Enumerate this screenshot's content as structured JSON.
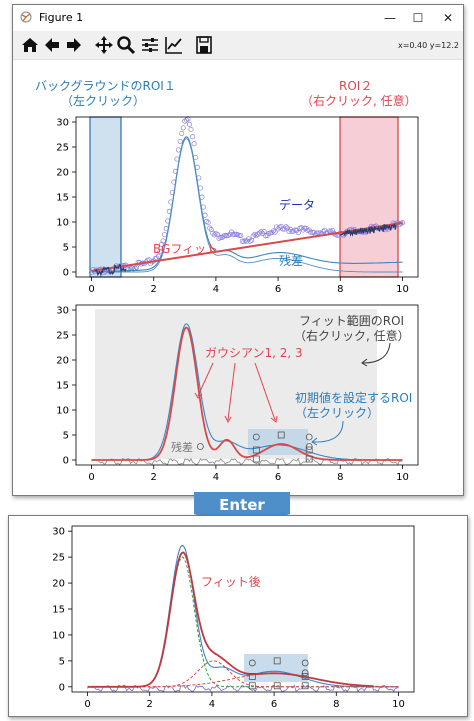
{
  "window": {
    "title": "Figure 1",
    "minimize_glyph": "—",
    "maximize_glyph": "☐",
    "close_glyph": "✕"
  },
  "toolbar": {
    "icons": [
      "home-icon",
      "back-arrow-icon",
      "forward-arrow-icon",
      "pan-icon",
      "zoom-icon",
      "configure-subplots-icon",
      "edit-axes-icon",
      "save-icon"
    ],
    "coords": "x=0.40 y=12.2"
  },
  "colors": {
    "blue_label": "#2b7bb9",
    "red_label": "#e0454f",
    "data_label": "#1a2fb0",
    "line_blue": "#3a87c4",
    "line_red": "#d84a4a",
    "roi1_fill": "#cfe0ee",
    "roi2_fill": "#f5cfd5",
    "arrow_banner": "#4e8fc9"
  },
  "plot1": {
    "annotations": {
      "roi1_title": "バックグラウンドのROI１",
      "roi1_sub": "（左クリック）",
      "roi2_title": "ROI２",
      "roi2_sub": "（右クリック, 任意）",
      "data": "データ",
      "bg_fit": "BGフィット",
      "residual": "残差"
    },
    "yticks": [
      "0",
      "5",
      "10",
      "15",
      "20",
      "25",
      "30"
    ],
    "xticks": [
      "0",
      "2",
      "4",
      "6",
      "8",
      "10"
    ]
  },
  "plot2": {
    "annotations": {
      "fit_range_title": "フィット範囲のROI",
      "fit_range_sub": "（右クリック, 任意）",
      "gaussian": "ガウシアン1, 2, 3",
      "init_title": "初期値を設定するROI",
      "init_sub": "（左クリック）",
      "residual": "残差"
    },
    "yticks": [
      "0",
      "5",
      "10",
      "15",
      "20",
      "25",
      "30"
    ],
    "xticks": [
      "0",
      "2",
      "4",
      "6",
      "8",
      "10"
    ]
  },
  "enter_banner": {
    "label": "Enter"
  },
  "plot3": {
    "annotations": {
      "after_fit": "フィット後"
    },
    "yticks": [
      "0",
      "5",
      "10",
      "15",
      "20",
      "25",
      "30"
    ],
    "xticks": [
      "0",
      "2",
      "4",
      "6",
      "8",
      "10"
    ]
  },
  "chart_data": [
    {
      "type": "scatter",
      "title": "",
      "xlabel": "",
      "ylabel": "",
      "xlim": [
        -0.5,
        10.5
      ],
      "ylim": [
        -1,
        31
      ],
      "series": [
        {
          "name": "データ",
          "style": "open-circle-markers"
        },
        {
          "name": "BGフィット",
          "style": "line",
          "x": [
            0,
            10
          ],
          "y": [
            0.2,
            9.8
          ]
        },
        {
          "name": "残差",
          "style": "line"
        }
      ],
      "regions": [
        {
          "label": "バックグラウンドのROI１",
          "x": [
            0.2,
            1.1
          ]
        },
        {
          "label": "ROI２",
          "x": [
            8.0,
            9.8
          ]
        }
      ]
    },
    {
      "type": "line",
      "title": "",
      "xlim": [
        -0.5,
        10.5
      ],
      "ylim": [
        -1,
        31
      ],
      "peaks": [
        {
          "center": 3.05,
          "height": 26.5,
          "sigma": 0.35
        },
        {
          "center": 4.35,
          "height": 4.0,
          "sigma": 0.25
        },
        {
          "center": 6.1,
          "height": 3.2,
          "sigma": 0.55
        }
      ],
      "regions": [
        {
          "label": "フィット範囲のROI",
          "x": [
            0.4,
            9.1
          ]
        },
        {
          "label": "初期値を設定するROI",
          "x": [
            5.2,
            7.1
          ]
        }
      ]
    },
    {
      "type": "line",
      "title": "",
      "xlim": [
        -0.5,
        10.5
      ],
      "ylim": [
        -1,
        31
      ],
      "peaks": [
        {
          "center": 3.05,
          "height": 25.0,
          "sigma": 0.38
        },
        {
          "center": 4.05,
          "height": 5.0,
          "sigma": 0.5
        },
        {
          "center": 6.0,
          "height": 2.6,
          "sigma": 1.3
        }
      ]
    }
  ]
}
